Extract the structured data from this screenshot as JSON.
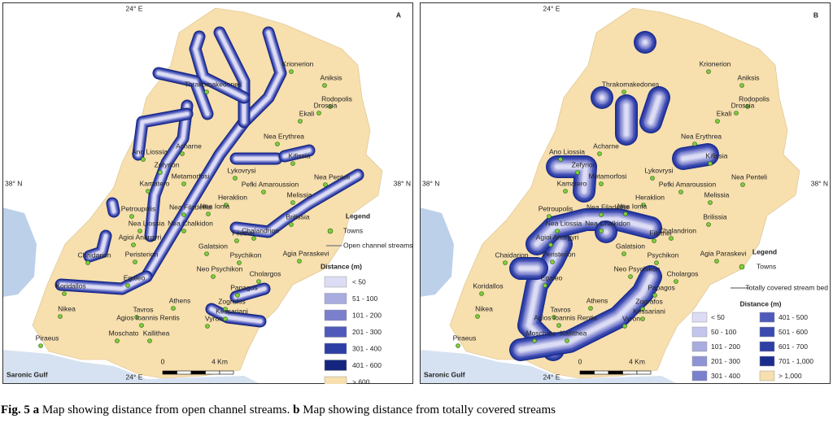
{
  "panels": [
    {
      "label": "A",
      "lon": "24° E",
      "lat": "38° N",
      "sea_label": "Saronic Gulf",
      "legend": {
        "title": "Legend",
        "towns": "Towns",
        "line": "Open channel streams",
        "distance_title": "Distance (m)",
        "classes": [
          {
            "label": "< 50",
            "color": "#dcdcf5"
          },
          {
            "label": "51 - 100",
            "color": "#a9acdf"
          },
          {
            "label": "101 - 200",
            "color": "#7a80cc"
          },
          {
            "label": "201 - 300",
            "color": "#4f5bbb"
          },
          {
            "label": "301 - 400",
            "color": "#2d3ea5"
          },
          {
            "label": "401 - 600",
            "color": "#15257f"
          },
          {
            "label": "> 600",
            "color": "#f7dfae"
          }
        ]
      },
      "scale": {
        "start": "0",
        "end": "4 Km"
      }
    },
    {
      "label": "B",
      "lon": "24° E",
      "lat": "38° N",
      "sea_label": "Saronic Gulf",
      "legend": {
        "title": "Legend",
        "towns": "Towns",
        "line": "Totally covered stream bed",
        "distance_title": "Distance (m)",
        "classes": [
          {
            "label": "< 50",
            "color": "#dcdcf5"
          },
          {
            "label": "50 - 100",
            "color": "#c3c5ec"
          },
          {
            "label": "101 - 200",
            "color": "#a9acdf"
          },
          {
            "label": "201 - 300",
            "color": "#8f94d5"
          },
          {
            "label": "301 - 400",
            "color": "#7a80cc"
          },
          {
            "label": "401 - 500",
            "color": "#4f5bbb"
          },
          {
            "label": "501 - 600",
            "color": "#3a4aaf"
          },
          {
            "label": "601 - 700",
            "color": "#2d3ea5"
          },
          {
            "label": "701 - 1,000",
            "color": "#1a2c8e"
          },
          {
            "label": "> 1,000",
            "color": "#f7dfae"
          }
        ]
      },
      "scale": {
        "start": "0",
        "end": "4 Km"
      }
    }
  ],
  "towns": [
    "Krionerion",
    "Aniksis",
    "Rodopolis",
    "Drossia",
    "Ekali",
    "Thrakomakedones",
    "Nea Erythrea",
    "Kifissia",
    "Acharne",
    "Ano Liossia",
    "Zefyrion",
    "Metamorfosi",
    "Lykovrysi",
    "Pefki Amaroussion",
    "Nea Penteli",
    "Kamatero",
    "Heraklion",
    "Melissia",
    "Petroupolis",
    "Nea Filadelfia",
    "Nea Ionia",
    "Nea Liossia",
    "Nea Chalkidon",
    "Agioi Anargyri",
    "Brilissia",
    "Filothei",
    "Chalandrion",
    "Chaidarion",
    "Peristerion",
    "Galatsion",
    "Psychikon",
    "Agia Paraskevi",
    "Neo Psychikon",
    "Cholargos",
    "Egaleo",
    "Koridallos",
    "Papagos",
    "Athens",
    "Nikea",
    "Tavros",
    "Agios Ioannis Rentis",
    "Zografos",
    "Kessariani",
    "Vyron",
    "Moschato",
    "Kallithea",
    "Piraeus"
  ],
  "caption": {
    "fig": "Fig. 5",
    "a": "a",
    "a_text": "Map showing distance from open channel streams.",
    "b": "b",
    "b_text": "Map showing distance from totally covered streams"
  }
}
